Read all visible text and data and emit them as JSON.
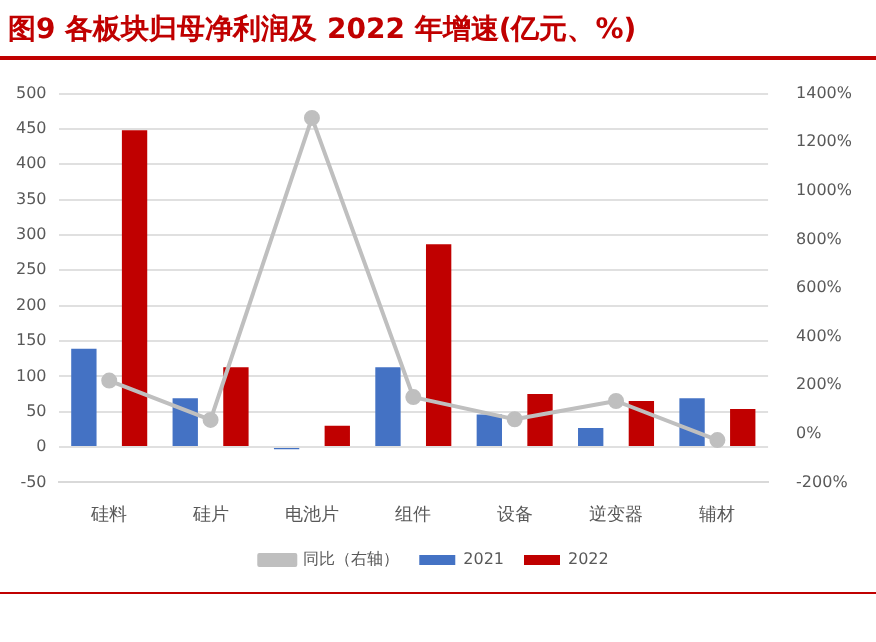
{
  "chart_data": {
    "type": "bar",
    "title": "图9 各板块归母净利润及 2022 年增速(亿元、%)",
    "categories": [
      "硅料",
      "硅片",
      "电池片",
      "组件",
      "设备",
      "逆变器",
      "辅材"
    ],
    "series": [
      {
        "name": "2021",
        "color": "#4472c4",
        "values": [
          139,
          69,
          -3,
          113,
          46,
          27,
          69
        ]
      },
      {
        "name": "2022",
        "color": "#c00000",
        "values": [
          448,
          113,
          30,
          287,
          75,
          65,
          54
        ]
      },
      {
        "name": "同比（右轴）",
        "color": "#bfbfbf",
        "type": "line",
        "axis": "y2",
        "values": [
          219,
          57,
          1300,
          151,
          60,
          135,
          -26
        ]
      }
    ],
    "ylim": [
      -50,
      500
    ],
    "yticks": [
      -50,
      0,
      50,
      100,
      150,
      200,
      250,
      300,
      350,
      400,
      450,
      500
    ],
    "y2lim": [
      -200,
      1400
    ],
    "y2ticks": [
      {
        "value": -200,
        "label": "-200%"
      },
      {
        "value": 0,
        "label": "0%"
      },
      {
        "value": 200,
        "label": "200%"
      },
      {
        "value": 400,
        "label": "400%"
      },
      {
        "value": 600,
        "label": "600%"
      },
      {
        "value": 800,
        "label": "800%"
      },
      {
        "value": 1000,
        "label": "1000%"
      },
      {
        "value": 1200,
        "label": "1200%"
      },
      {
        "value": 1400,
        "label": "1400%"
      }
    ],
    "grid": "y",
    "legend": "bottom",
    "marker": "circle",
    "line_style": "solid"
  }
}
